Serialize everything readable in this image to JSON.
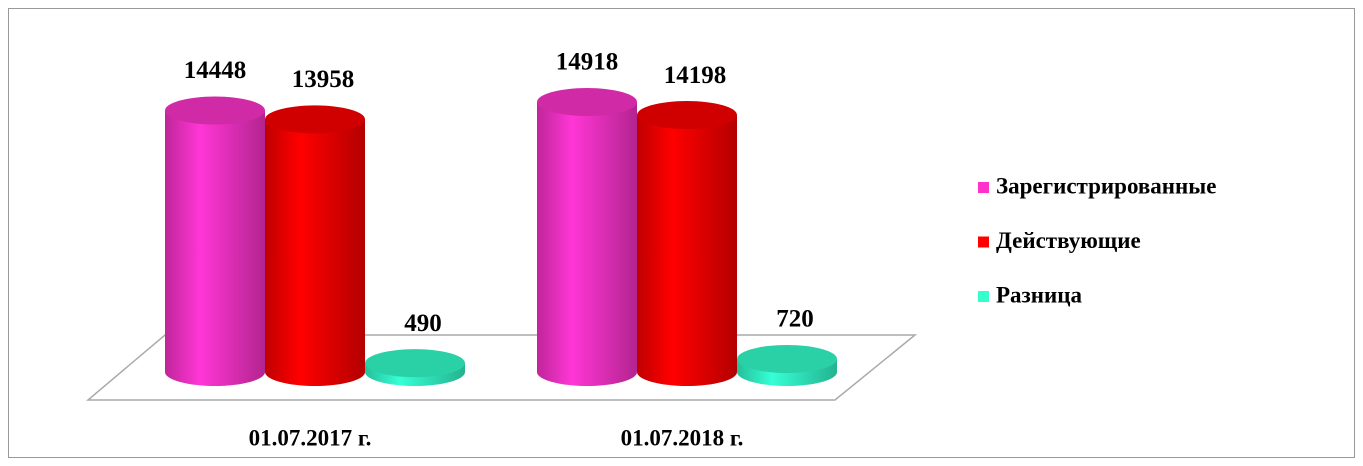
{
  "chart_data": {
    "type": "bar3d",
    "categories": [
      "01.07.2017 г.",
      "01.07.2018 г."
    ],
    "series": [
      {
        "name": "Зарегистрированные",
        "color": "#ff33cc",
        "values": [
          14448,
          14918
        ]
      },
      {
        "name": "Действующие",
        "color": "#ff0000",
        "values": [
          13958,
          14198
        ]
      },
      {
        "name": "Разница",
        "color": "#33ffcc",
        "values": [
          490,
          720
        ]
      }
    ],
    "legend": "right"
  }
}
